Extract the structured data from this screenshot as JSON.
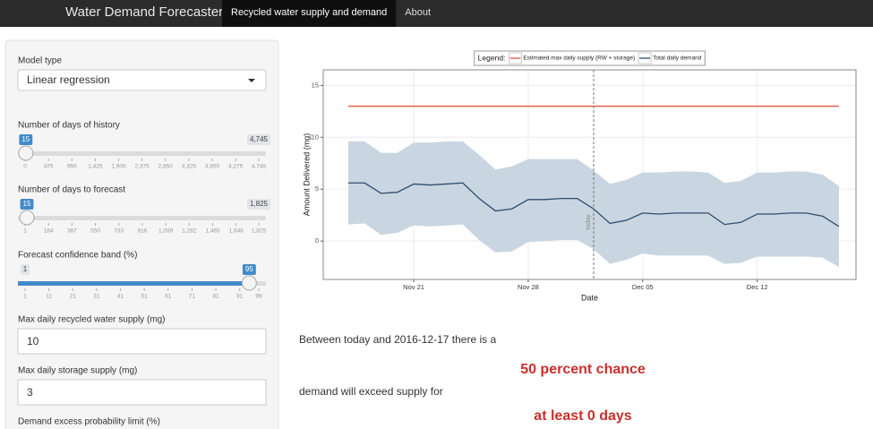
{
  "navbar": {
    "brand": "Water Demand Forecaster",
    "tabs": [
      {
        "label": "Recycled water supply and demand",
        "active": true
      },
      {
        "label": "About",
        "active": false
      }
    ]
  },
  "sidebar": {
    "select": {
      "label": "Model type",
      "value": "Linear regression"
    },
    "sliders": [
      {
        "label": "Number of days of history",
        "value": 15,
        "edge_label": {
          "value": 4745,
          "label": "4,745"
        },
        "fill": false,
        "ticks": [
          0,
          475,
          950,
          {
            "value": 1425,
            "label": "1,425"
          },
          {
            "value": 1900,
            "label": "1,900"
          },
          {
            "value": 2375,
            "label": "2,375"
          },
          {
            "value": 2850,
            "label": "2,850"
          },
          {
            "value": 3325,
            "label": "3,325"
          },
          {
            "value": 3800,
            "label": "3,800"
          },
          {
            "value": 4275,
            "label": "4,275"
          },
          {
            "value": 4745,
            "label": "4,745"
          }
        ]
      },
      {
        "label": "Number of days to forecast",
        "value": 15,
        "edge_label": {
          "value": 1825,
          "label": "1,825"
        },
        "fill": false,
        "ticks": [
          1,
          184,
          367,
          550,
          733,
          916,
          {
            "value": 1099,
            "label": "1,099"
          },
          {
            "value": 1282,
            "label": "1,282"
          },
          {
            "value": 1465,
            "label": "1,465"
          },
          {
            "value": 1648,
            "label": "1,648"
          },
          {
            "value": 1825,
            "label": "1,825"
          }
        ]
      },
      {
        "label": "Forecast confidence band (%)",
        "value": 95,
        "edge_label": 1,
        "fill": true,
        "ticks": [
          1,
          11,
          21,
          31,
          41,
          51,
          61,
          71,
          81,
          91,
          99
        ]
      }
    ],
    "inputs": [
      {
        "label": "Max daily recycled water supply (mg)",
        "value": 10
      },
      {
        "label": "Max daily storage supply (mg)",
        "value": 3
      },
      {
        "label": "Demand excess probability limit (%)"
      }
    ]
  },
  "output": {
    "intro": "Between today and 2016-12-17 there is a",
    "chance": "50 percent chance",
    "middle": "demand will exceed supply for",
    "days": "at least 0 days"
  },
  "chart_data": {
    "type": "line",
    "legend_title": "Legend:",
    "legend_position": "top",
    "x_label": "Date",
    "y_label": "Amount Delivered (mg)",
    "categories": [
      null,
      null,
      null,
      null,
      "Nov 21",
      null,
      null,
      null,
      null,
      null,
      null,
      "Nov 28",
      null,
      null,
      null,
      null,
      null,
      null,
      "Dec 05",
      null,
      null,
      null,
      null,
      null,
      null,
      "Dec 12",
      null,
      null,
      null,
      null,
      null
    ],
    "ylim": [
      -3.7,
      16.5
    ],
    "yticks": [
      0,
      5,
      10,
      15
    ],
    "grid": true,
    "series": [
      {
        "name": "Estimated max daily supply (RW + storage)",
        "color": "#e8543e",
        "values": [
          13,
          13,
          13,
          13,
          13,
          13,
          13,
          13,
          13,
          13,
          13,
          13,
          13,
          13,
          13,
          13,
          13,
          13,
          13,
          13,
          13,
          13,
          13,
          13,
          13,
          13,
          13,
          13,
          13,
          13,
          13
        ]
      },
      {
        "name": "Total daily demand",
        "color": "#2f4b6e",
        "values": [
          5.6,
          5.6,
          4.6,
          4.7,
          5.5,
          5.4,
          5.5,
          5.6,
          4.1,
          2.9,
          3.1,
          4.0,
          4.0,
          4.1,
          4.1,
          3.1,
          1.7,
          2.0,
          2.7,
          2.6,
          2.7,
          2.7,
          2.7,
          1.6,
          1.8,
          2.6,
          2.6,
          2.7,
          2.7,
          2.4,
          1.4
        ]
      }
    ],
    "band": {
      "color": "#c9d6e1",
      "upper": [
        9.6,
        9.6,
        8.5,
        8.5,
        9.5,
        9.5,
        9.6,
        9.6,
        8.3,
        6.9,
        7.2,
        7.9,
        7.9,
        7.9,
        7.9,
        6.8,
        5.5,
        5.9,
        6.6,
        6.6,
        6.7,
        6.7,
        6.6,
        5.6,
        5.8,
        6.6,
        6.6,
        6.7,
        6.7,
        6.4,
        5.3
      ],
      "lower": [
        1.6,
        1.7,
        0.6,
        0.8,
        1.5,
        1.4,
        1.5,
        1.6,
        0.1,
        -1.1,
        -1.0,
        -0.1,
        0,
        0.1,
        0.1,
        -0.8,
        -2.2,
        -1.8,
        -1.2,
        -1.4,
        -1.4,
        -1.4,
        -1.4,
        -2.2,
        -2.1,
        -1.5,
        -1.5,
        -1.5,
        -1.5,
        -1.6,
        -2.5
      ]
    },
    "annotations": [
      {
        "text": "today",
        "x": 15
      }
    ]
  }
}
